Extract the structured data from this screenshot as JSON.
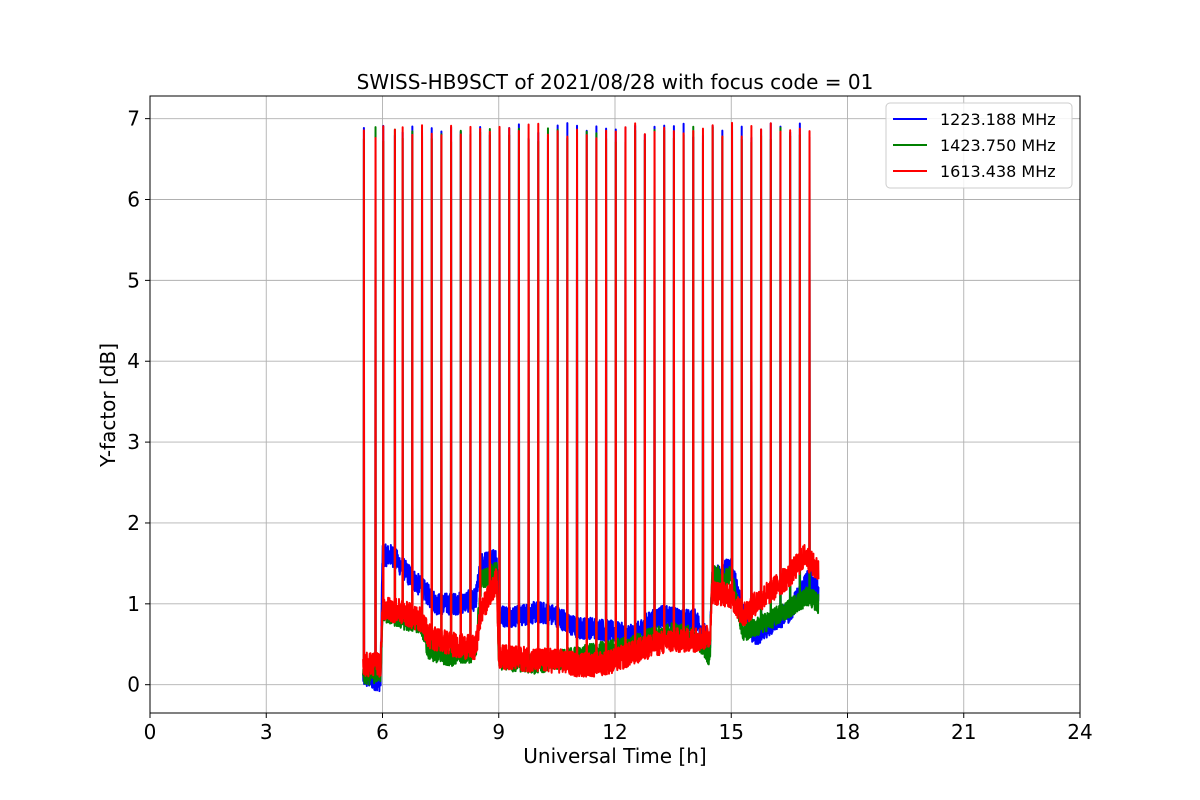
{
  "chart_data": {
    "type": "line",
    "title": "SWISS-HB9SCT of 2021/08/28 with focus code = 01",
    "xlabel": "Universal Time [h]",
    "ylabel": "Y-factor [dB]",
    "xlim": [
      0,
      24
    ],
    "ylim": [
      -0.35,
      7.28
    ],
    "xticks": [
      0,
      3,
      6,
      9,
      12,
      15,
      18,
      21,
      24
    ],
    "yticks": [
      0,
      1,
      2,
      3,
      4,
      5,
      6,
      7
    ],
    "grid": true,
    "legend_position": "top-right",
    "calibration_spike_times": [
      5.52,
      5.82,
      6.02,
      6.32,
      6.52,
      6.77,
      7.02,
      7.27,
      7.52,
      7.77,
      8.02,
      8.27,
      8.52,
      8.77,
      9.02,
      9.27,
      9.52,
      9.77,
      10.02,
      10.27,
      10.52,
      10.77,
      11.02,
      11.27,
      11.52,
      11.77,
      12.02,
      12.27,
      12.52,
      12.77,
      13.02,
      13.27,
      13.52,
      13.77,
      14.02,
      14.27,
      14.52,
      14.77,
      15.02,
      15.27,
      15.52,
      15.77,
      16.02,
      16.27,
      16.52,
      16.77,
      17.02
    ],
    "spike_peak_db": 6.85,
    "series": [
      {
        "name": "1223.188 MHz",
        "color": "#0000ff",
        "noise_db": 0.08,
        "baseline": [
          [
            5.5,
            0.1
          ],
          [
            5.95,
            0.05
          ],
          [
            6.0,
            1.6
          ],
          [
            6.25,
            1.6
          ],
          [
            6.6,
            1.4
          ],
          [
            7.0,
            1.2
          ],
          [
            7.4,
            1.0
          ],
          [
            7.9,
            1.0
          ],
          [
            8.4,
            1.05
          ],
          [
            8.55,
            1.5
          ],
          [
            8.95,
            1.55
          ],
          [
            9.0,
            0.85
          ],
          [
            9.5,
            0.85
          ],
          [
            10.0,
            0.9
          ],
          [
            10.5,
            0.85
          ],
          [
            11.0,
            0.7
          ],
          [
            11.5,
            0.7
          ],
          [
            12.0,
            0.65
          ],
          [
            12.5,
            0.6
          ],
          [
            12.8,
            0.75
          ],
          [
            13.2,
            0.85
          ],
          [
            13.8,
            0.8
          ],
          [
            14.1,
            0.8
          ],
          [
            14.45,
            0.5
          ],
          [
            14.5,
            1.3
          ],
          [
            15.0,
            1.45
          ],
          [
            15.3,
            0.9
          ],
          [
            15.6,
            0.6
          ],
          [
            16.0,
            0.75
          ],
          [
            16.5,
            0.9
          ],
          [
            17.0,
            1.3
          ],
          [
            17.25,
            1.15
          ]
        ]
      },
      {
        "name": "1423.750 MHz",
        "color": "#008000",
        "noise_db": 0.07,
        "baseline": [
          [
            5.5,
            0.1
          ],
          [
            5.95,
            0.15
          ],
          [
            6.0,
            0.9
          ],
          [
            6.5,
            0.8
          ],
          [
            7.0,
            0.75
          ],
          [
            7.2,
            0.4
          ],
          [
            7.8,
            0.35
          ],
          [
            8.4,
            0.4
          ],
          [
            8.55,
            1.3
          ],
          [
            8.95,
            1.4
          ],
          [
            9.0,
            0.3
          ],
          [
            10.0,
            0.25
          ],
          [
            10.5,
            0.3
          ],
          [
            11.0,
            0.35
          ],
          [
            11.5,
            0.4
          ],
          [
            12.0,
            0.45
          ],
          [
            12.5,
            0.5
          ],
          [
            13.0,
            0.6
          ],
          [
            13.5,
            0.65
          ],
          [
            14.0,
            0.6
          ],
          [
            14.45,
            0.35
          ],
          [
            14.5,
            1.35
          ],
          [
            15.0,
            1.35
          ],
          [
            15.3,
            0.65
          ],
          [
            15.6,
            0.7
          ],
          [
            16.0,
            0.8
          ],
          [
            16.5,
            0.95
          ],
          [
            17.0,
            1.1
          ],
          [
            17.25,
            1.0
          ]
        ]
      },
      {
        "name": "1613.438 MHz",
        "color": "#ff0000",
        "noise_db": 0.09,
        "baseline": [
          [
            5.5,
            0.25
          ],
          [
            5.95,
            0.25
          ],
          [
            6.0,
            0.95
          ],
          [
            6.5,
            0.9
          ],
          [
            7.0,
            0.8
          ],
          [
            7.2,
            0.6
          ],
          [
            7.8,
            0.5
          ],
          [
            8.4,
            0.45
          ],
          [
            8.55,
            0.9
          ],
          [
            8.95,
            1.3
          ],
          [
            9.0,
            0.35
          ],
          [
            10.0,
            0.3
          ],
          [
            10.5,
            0.3
          ],
          [
            11.0,
            0.25
          ],
          [
            11.5,
            0.25
          ],
          [
            12.0,
            0.3
          ],
          [
            12.5,
            0.4
          ],
          [
            13.0,
            0.5
          ],
          [
            13.5,
            0.55
          ],
          [
            14.0,
            0.55
          ],
          [
            14.45,
            0.6
          ],
          [
            14.5,
            1.15
          ],
          [
            15.0,
            1.1
          ],
          [
            15.3,
            0.85
          ],
          [
            15.6,
            1.0
          ],
          [
            16.0,
            1.15
          ],
          [
            16.5,
            1.35
          ],
          [
            16.9,
            1.6
          ],
          [
            17.25,
            1.4
          ]
        ]
      }
    ]
  }
}
